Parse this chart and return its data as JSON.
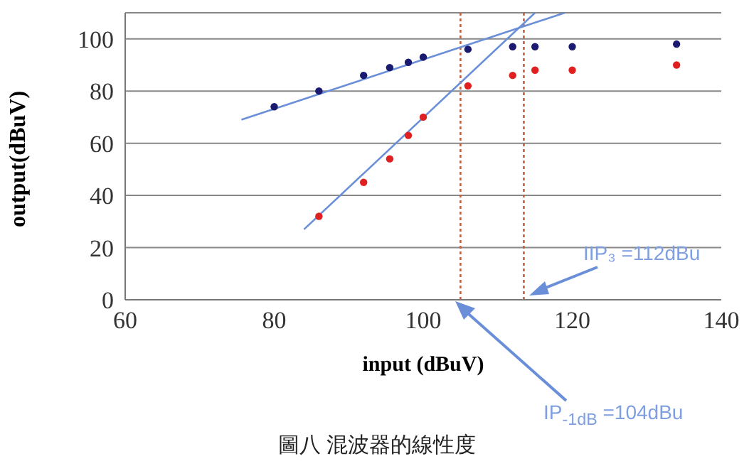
{
  "chart_data": {
    "type": "scatter",
    "title": "圖八 混波器的線性度",
    "xlabel": "input (dBuV)",
    "ylabel": "output(dBuV)",
    "xlim": [
      60,
      140
    ],
    "xticks": [
      60,
      80,
      100,
      120,
      140
    ],
    "ylim": [
      0,
      110
    ],
    "yticks": [
      0,
      20,
      40,
      60,
      80,
      100
    ],
    "grid": "y",
    "legend": false,
    "marker": "circle",
    "series": [
      {
        "type": "scatter",
        "color": "#1a1a70",
        "x": [
          80,
          86,
          92,
          95.5,
          98,
          100,
          106,
          112,
          115,
          120,
          134
        ],
        "values": [
          74,
          80,
          86,
          89,
          91,
          93,
          96,
          97,
          97,
          97,
          98
        ]
      },
      {
        "type": "scatter",
        "color": "#e02020",
        "x": [
          86,
          92,
          95.5,
          98,
          100,
          106,
          112,
          115,
          120,
          134
        ],
        "values": [
          32,
          45,
          54,
          63,
          70,
          82,
          86,
          88,
          88,
          90
        ]
      },
      {
        "type": "line",
        "color": "#6a8fd8",
        "marker": "none",
        "line_style": "solid",
        "x": [
          75.6,
          119
        ],
        "values": [
          69,
          110
        ]
      },
      {
        "type": "line",
        "color": "#6a8fd8",
        "marker": "none",
        "line_style": "solid",
        "x": [
          84,
          115
        ],
        "values": [
          27,
          110
        ]
      }
    ],
    "ref_lines": [
      {
        "axis": "x",
        "value": 105,
        "color": "#c06040",
        "line_style": "dotted"
      },
      {
        "axis": "x",
        "value": 113.5,
        "color": "#c06040",
        "line_style": "dotted"
      }
    ],
    "annotations": [
      "IIP₃ =112dBu",
      "IP$_{-1dB}$ =104dBu"
    ]
  }
}
